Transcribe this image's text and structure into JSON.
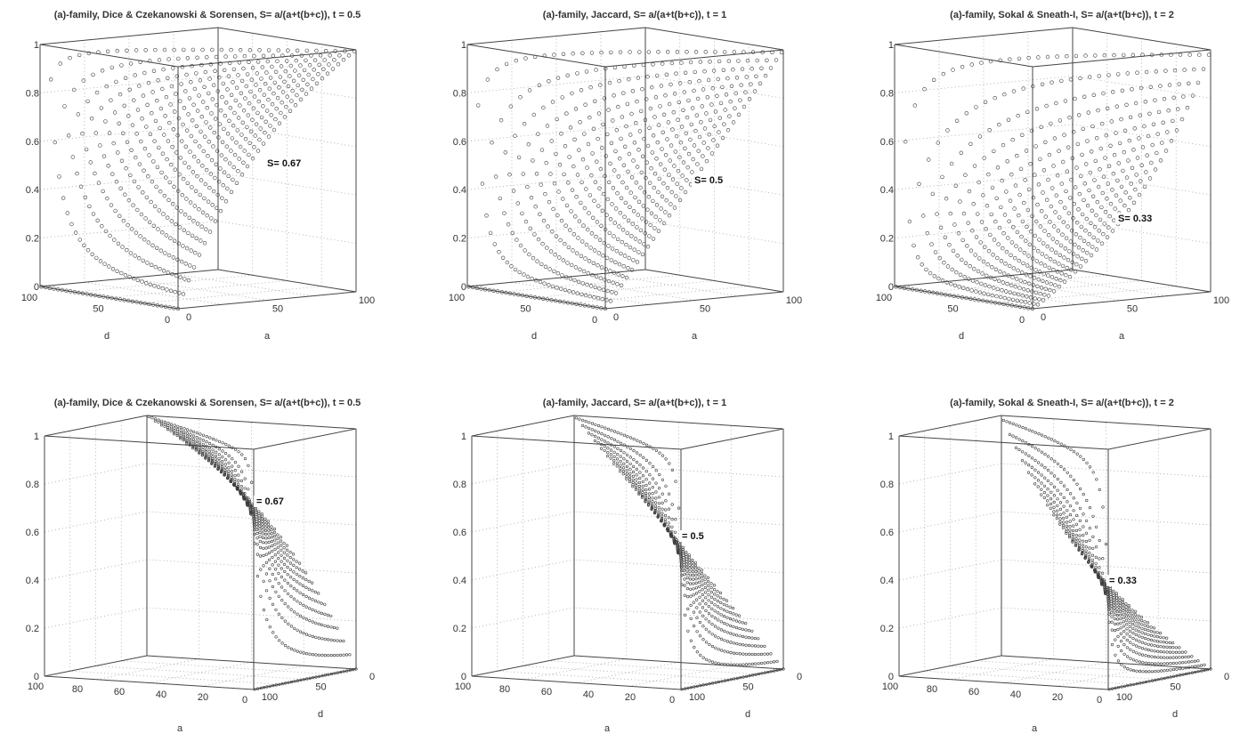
{
  "chart_data": [
    {
      "type": "scatter",
      "view": "front",
      "title": "(a)-family, Dice & Czekanowski & Sorensen, S= a/(a+t(b+c)), t = 0.5",
      "t": 0.5,
      "annotation": "S= 0.67",
      "annotation_value": 0.67,
      "xlabel": "a",
      "ylabel": "d",
      "zlim": [
        0,
        1
      ],
      "xlim": [
        0,
        100
      ],
      "ylim": [
        0,
        100
      ],
      "grid": true,
      "z_ticks": [
        "0",
        "0.2",
        "0.4",
        "0.6",
        "0.8",
        "1"
      ],
      "a_ticks": [
        "0",
        "50",
        "100"
      ],
      "d_ticks": [
        "100",
        "50",
        "0"
      ]
    },
    {
      "type": "scatter",
      "view": "front",
      "title": "(a)-family, Jaccard, S= a/(a+t(b+c)), t = 1",
      "t": 1,
      "annotation": "S= 0.5",
      "annotation_value": 0.5,
      "xlabel": "a",
      "ylabel": "d",
      "zlim": [
        0,
        1
      ],
      "xlim": [
        0,
        100
      ],
      "ylim": [
        0,
        100
      ],
      "grid": true,
      "z_ticks": [
        "0",
        "0.2",
        "0.4",
        "0.6",
        "0.8",
        "1"
      ],
      "a_ticks": [
        "0",
        "50",
        "100"
      ],
      "d_ticks": [
        "100",
        "50",
        "0"
      ]
    },
    {
      "type": "scatter",
      "view": "front",
      "title": "(a)-family, Sokal & Sneath-I, S= a/(a+t(b+c)), t = 2",
      "t": 2,
      "annotation": "S= 0.33",
      "annotation_value": 0.33,
      "xlabel": "a",
      "ylabel": "d",
      "zlim": [
        0,
        1
      ],
      "xlim": [
        0,
        100
      ],
      "ylim": [
        0,
        100
      ],
      "grid": true,
      "z_ticks": [
        "0",
        "0.2",
        "0.4",
        "0.6",
        "0.8",
        "1"
      ],
      "a_ticks": [
        "0",
        "50",
        "100"
      ],
      "d_ticks": [
        "100",
        "50",
        "0"
      ]
    },
    {
      "type": "scatter",
      "view": "rotated",
      "title": "(a)-family, Dice & Czekanowski & Sorensen, S= a/(a+t(b+c)), t = 0.5",
      "t": 0.5,
      "annotation": "= 0.67",
      "annotation_value": 0.67,
      "xlabel": "a",
      "ylabel": "d",
      "zlim": [
        0,
        1
      ],
      "xlim": [
        0,
        100
      ],
      "ylim": [
        0,
        100
      ],
      "grid": true,
      "z_ticks": [
        "0",
        "0.2",
        "0.4",
        "0.6",
        "0.8",
        "1"
      ],
      "a_ticks": [
        "100",
        "80",
        "60",
        "40",
        "20",
        "0"
      ],
      "d_ticks": [
        "100",
        "50",
        "0"
      ]
    },
    {
      "type": "scatter",
      "view": "rotated",
      "title": "(a)-family, Jaccard, S= a/(a+t(b+c)), t = 1",
      "t": 1,
      "annotation": "= 0.5",
      "annotation_value": 0.5,
      "xlabel": "a",
      "ylabel": "d",
      "zlim": [
        0,
        1
      ],
      "xlim": [
        0,
        100
      ],
      "ylim": [
        0,
        100
      ],
      "grid": true,
      "z_ticks": [
        "0",
        "0.2",
        "0.4",
        "0.6",
        "0.8",
        "1"
      ],
      "a_ticks": [
        "100",
        "80",
        "60",
        "40",
        "20",
        "0"
      ],
      "d_ticks": [
        "100",
        "50",
        "0"
      ]
    },
    {
      "type": "scatter",
      "view": "rotated",
      "title": "(a)-family, Sokal & Sneath-I, S= a/(a+t(b+c)), t = 2",
      "t": 2,
      "annotation": "= 0.33",
      "annotation_value": 0.33,
      "xlabel": "a",
      "ylabel": "d",
      "zlim": [
        0,
        1
      ],
      "xlim": [
        0,
        100
      ],
      "ylim": [
        0,
        100
      ],
      "grid": true,
      "z_ticks": [
        "0",
        "0.2",
        "0.4",
        "0.6",
        "0.8",
        "1"
      ],
      "a_ticks": [
        "100",
        "80",
        "60",
        "40",
        "20",
        "0"
      ],
      "d_ticks": [
        "100",
        "50",
        "0"
      ]
    }
  ]
}
